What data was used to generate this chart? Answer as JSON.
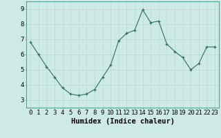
{
  "x": [
    0,
    1,
    2,
    3,
    4,
    5,
    6,
    7,
    8,
    9,
    10,
    11,
    12,
    13,
    14,
    15,
    16,
    17,
    18,
    19,
    20,
    21,
    22,
    23
  ],
  "y": [
    6.8,
    6.0,
    5.2,
    4.5,
    3.8,
    3.4,
    3.3,
    3.4,
    3.7,
    4.5,
    5.3,
    6.9,
    7.4,
    7.6,
    8.95,
    8.1,
    8.2,
    6.7,
    6.2,
    5.8,
    5.0,
    5.4,
    6.5,
    6.5
  ],
  "line_color": "#2d6e63",
  "marker_color": "#2d6e63",
  "bg_color": "#ceeae7",
  "grid_color": "#b8d8d4",
  "xlabel": "Humidex (Indice chaleur)",
  "ylim": [
    2.5,
    9.5
  ],
  "xlim": [
    -0.5,
    23.5
  ],
  "yticks": [
    3,
    4,
    5,
    6,
    7,
    8,
    9
  ],
  "xtick_labels": [
    "0",
    "1",
    "2",
    "3",
    "4",
    "5",
    "6",
    "7",
    "8",
    "9",
    "10",
    "11",
    "12",
    "13",
    "14",
    "15",
    "16",
    "17",
    "18",
    "19",
    "20",
    "21",
    "22",
    "23"
  ],
  "figsize": [
    3.2,
    2.0
  ],
  "dpi": 100,
  "xlabel_fontsize": 7.5,
  "tick_fontsize": 6.5
}
